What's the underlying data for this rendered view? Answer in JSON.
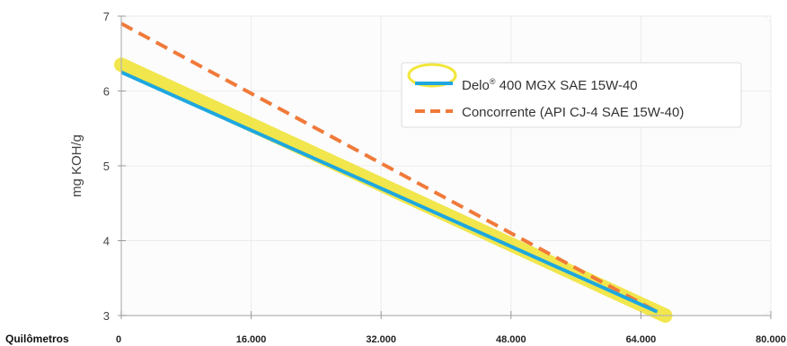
{
  "chart_data": {
    "type": "line",
    "xlabel": "Quilômetros",
    "ylabel": "mg KOH/g",
    "xlim": [
      0,
      80000
    ],
    "ylim": [
      3,
      7
    ],
    "x_ticks": [
      0,
      16000,
      32000,
      48000,
      64000,
      80000
    ],
    "x_tick_labels": [
      "0",
      "16.000",
      "32.000",
      "48.000",
      "64.000",
      "80.000"
    ],
    "y_ticks": [
      3,
      4,
      5,
      6,
      7
    ],
    "y_tick_labels": [
      "3",
      "4",
      "5",
      "6",
      "7"
    ],
    "grid": true,
    "legend_position": "top-right",
    "series": [
      {
        "name": "Delo",
        "name_sup": "®",
        "name_rest": " 400 MGX SAE 15W-40",
        "style": "solid",
        "color": "#1ea7df",
        "x": [
          0,
          66000
        ],
        "y": [
          6.25,
          3.05
        ]
      },
      {
        "name": "Concorrente (API CJ-4 SAE 15W-40)",
        "style": "dashed",
        "color": "#f07a3a",
        "x": [
          0,
          66000
        ],
        "y": [
          6.9,
          3.05
        ]
      }
    ],
    "highlight": {
      "color": "#f0e43a",
      "x": [
        0,
        67000
      ],
      "y": [
        6.35,
        3.0
      ]
    }
  }
}
